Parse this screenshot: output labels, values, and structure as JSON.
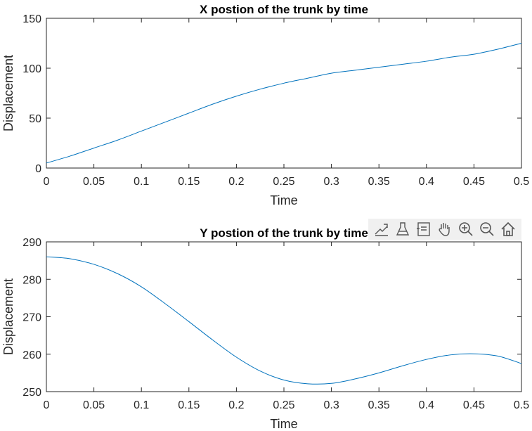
{
  "chart_data": [
    {
      "type": "line",
      "title": "X postion of the trunk by time",
      "xlabel": "Time",
      "ylabel": "Displacement",
      "xlim": [
        0,
        0.5
      ],
      "ylim": [
        0,
        150
      ],
      "xticks": [
        0,
        0.05,
        0.1,
        0.15,
        0.2,
        0.25,
        0.3,
        0.35,
        0.4,
        0.45,
        0.5
      ],
      "xtick_labels": [
        "0",
        "0.05",
        "0.1",
        "0.15",
        "0.2",
        "0.25",
        "0.3",
        "0.35",
        "0.4",
        "0.45",
        "0.5"
      ],
      "yticks": [
        0,
        50,
        100,
        150
      ],
      "ytick_labels": [
        "0",
        "50",
        "100",
        "150"
      ],
      "grid": false,
      "series": [
        {
          "color": "#0072BD",
          "x": [
            0,
            0.025,
            0.05,
            0.075,
            0.1,
            0.125,
            0.15,
            0.175,
            0.2,
            0.225,
            0.25,
            0.275,
            0.3,
            0.325,
            0.35,
            0.375,
            0.4,
            0.425,
            0.45,
            0.475,
            0.5
          ],
          "y": [
            5,
            12,
            20,
            28,
            37,
            46,
            55,
            64,
            72,
            79,
            85,
            90,
            95,
            98,
            101,
            104,
            107,
            111,
            114,
            119,
            125
          ]
        }
      ]
    },
    {
      "type": "line",
      "title": "Y postion of the trunk by time",
      "xlabel": "Time",
      "ylabel": "Displacement",
      "xlim": [
        0,
        0.5
      ],
      "ylim": [
        250,
        290
      ],
      "xticks": [
        0,
        0.05,
        0.1,
        0.15,
        0.2,
        0.25,
        0.3,
        0.35,
        0.4,
        0.45,
        0.5
      ],
      "xtick_labels": [
        "0",
        "0.05",
        "0.1",
        "0.15",
        "0.2",
        "0.25",
        "0.3",
        "0.35",
        "0.4",
        "0.45",
        "0.5"
      ],
      "yticks": [
        250,
        260,
        270,
        280,
        290
      ],
      "ytick_labels": [
        "250",
        "260",
        "270",
        "280",
        "290"
      ],
      "grid": false,
      "series": [
        {
          "color": "#0072BD",
          "x": [
            0,
            0.025,
            0.05,
            0.075,
            0.1,
            0.125,
            0.15,
            0.175,
            0.2,
            0.225,
            0.25,
            0.275,
            0.3,
            0.325,
            0.35,
            0.375,
            0.4,
            0.425,
            0.45,
            0.475,
            0.5
          ],
          "y": [
            286,
            285.5,
            284,
            281.5,
            278,
            273.5,
            268.7,
            263.8,
            259.2,
            255.5,
            253.1,
            252.1,
            252.2,
            253.4,
            255,
            256.9,
            258.6,
            259.8,
            260.1,
            259.5,
            257.5
          ]
        }
      ]
    }
  ],
  "toolbar": {
    "icons": [
      "export-icon",
      "brush-icon",
      "datatip-icon",
      "pan-icon",
      "zoom-in-icon",
      "zoom-out-icon",
      "home-icon"
    ]
  }
}
